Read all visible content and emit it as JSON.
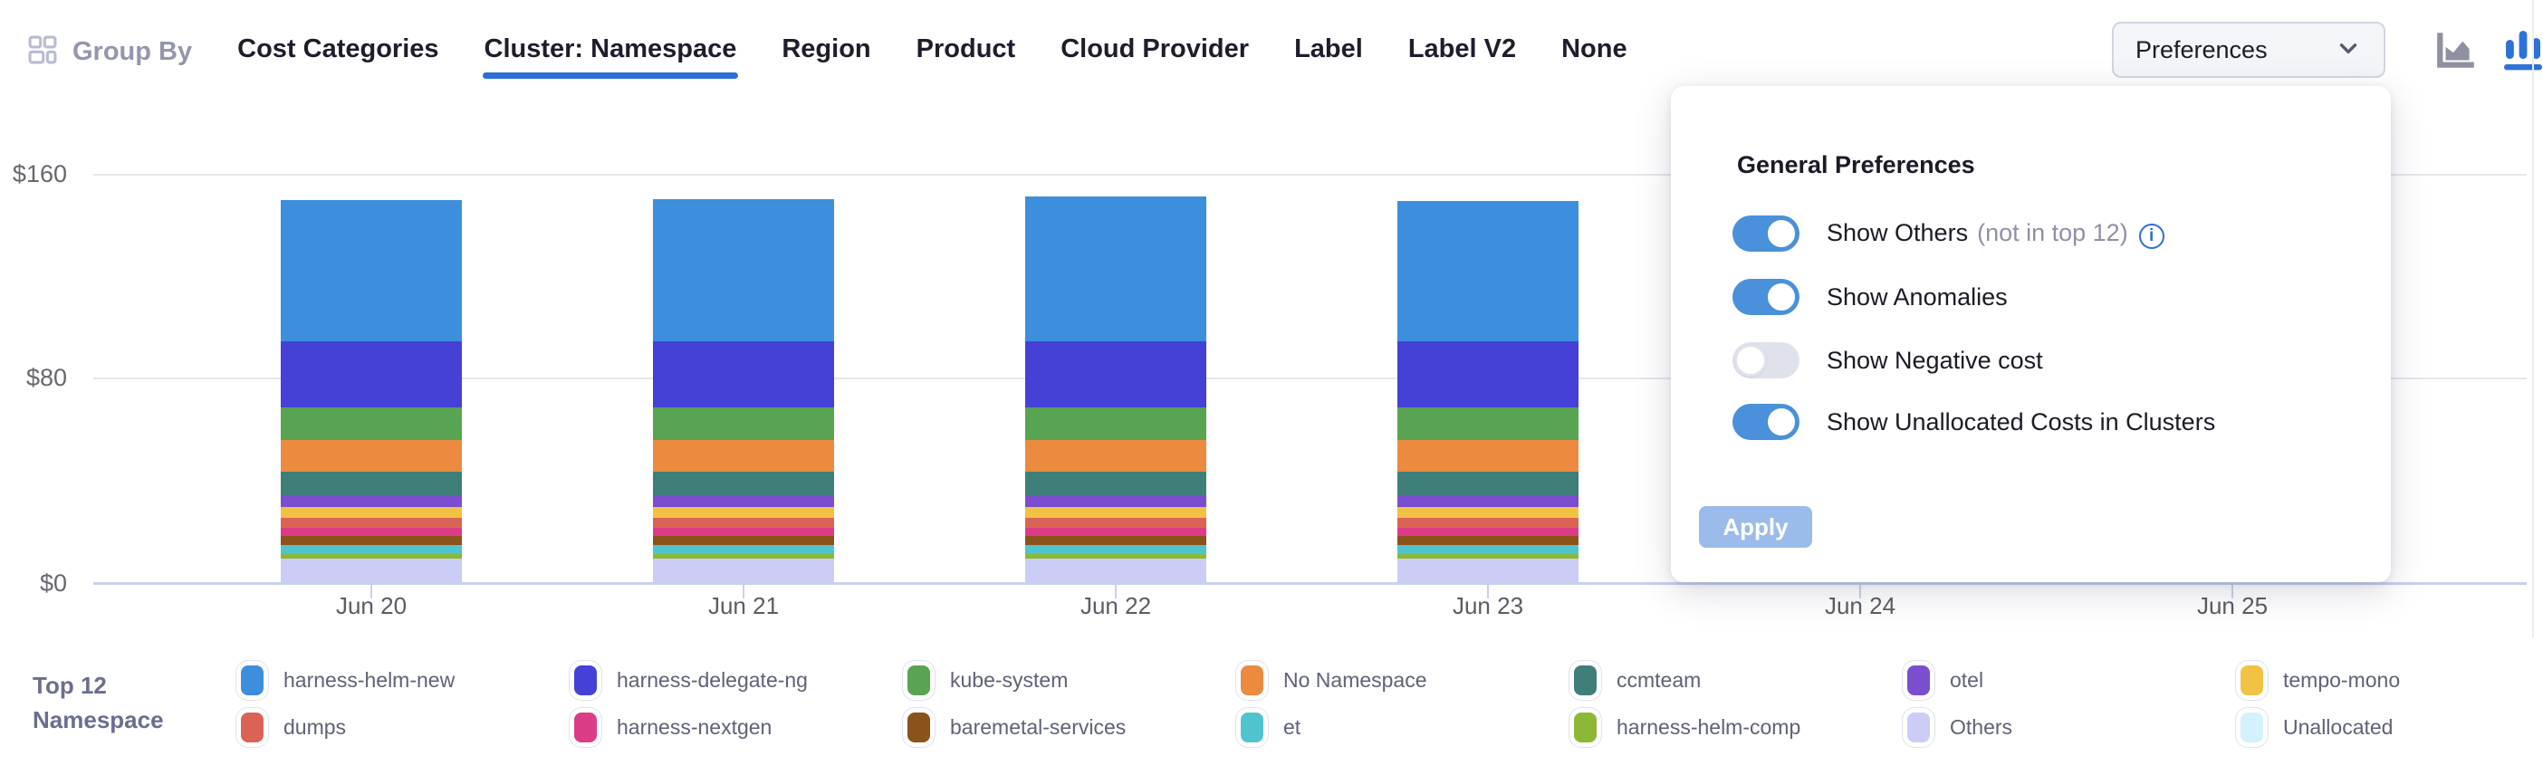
{
  "header": {
    "group_by_label": "Group By",
    "tabs": [
      {
        "label": "Cost Categories",
        "active": false
      },
      {
        "label": "Cluster: Namespace",
        "active": true
      },
      {
        "label": "Region",
        "active": false
      },
      {
        "label": "Product",
        "active": false
      },
      {
        "label": "Cloud Provider",
        "active": false
      },
      {
        "label": "Label",
        "active": false
      },
      {
        "label": "Label V2",
        "active": false
      },
      {
        "label": "None",
        "active": false
      }
    ],
    "preferences_button_label": "Preferences",
    "chart_mode": {
      "icons": [
        "area-chart-icon",
        "bar-chart-icon"
      ],
      "active": "bar-chart-icon"
    }
  },
  "preferences_panel": {
    "title": "General Preferences",
    "toggles": [
      {
        "label": "Show Others",
        "suffix": "(not in top 12)",
        "has_info_icon": true,
        "on": true
      },
      {
        "label": "Show Anomalies",
        "suffix": "",
        "has_info_icon": false,
        "on": true
      },
      {
        "label": "Show Negative cost",
        "suffix": "",
        "has_info_icon": false,
        "on": false
      },
      {
        "label": "Show Unallocated Costs in Clusters",
        "suffix": "",
        "has_info_icon": false,
        "on": true
      }
    ],
    "apply_label": "Apply"
  },
  "legend": {
    "title_line1": "Top 12",
    "title_line2": "Namespace"
  },
  "chart_data": {
    "type": "bar",
    "stacked": true,
    "categories": [
      "Jun 20",
      "Jun 21",
      "Jun 22",
      "Jun 23",
      "Jun 24",
      "Jun 25"
    ],
    "note": "Jun 24 and Jun 25 columns are occluded by the open Preferences panel",
    "y_tick_labels": [
      "$0",
      "$80",
      "$160"
    ],
    "ylim": [
      0,
      160
    ],
    "currency": "$",
    "grid": true,
    "legend_position": "bottom",
    "series": [
      {
        "name": "harness-helm-new",
        "color": "#3d8edd",
        "values": [
          55.5,
          55.8,
          57.0,
          55.2,
          null,
          null
        ]
      },
      {
        "name": "harness-delegate-ng",
        "color": "#4541d6",
        "values": [
          26.0,
          26.0,
          26.0,
          26.0,
          null,
          null
        ]
      },
      {
        "name": "kube-system",
        "color": "#58a452",
        "values": [
          12.5,
          12.5,
          12.5,
          12.5,
          null,
          null
        ]
      },
      {
        "name": "No Namespace",
        "color": "#ec8a3f",
        "values": [
          12.5,
          12.5,
          12.5,
          12.5,
          null,
          null
        ]
      },
      {
        "name": "ccmteam",
        "color": "#3f7e79",
        "values": [
          9.5,
          9.5,
          9.5,
          9.5,
          null,
          null
        ]
      },
      {
        "name": "otel",
        "color": "#7a4ecf",
        "values": [
          4.6,
          4.6,
          4.6,
          4.6,
          null,
          null
        ]
      },
      {
        "name": "tempo-mono",
        "color": "#f2c245",
        "values": [
          4.0,
          4.0,
          4.0,
          4.0,
          null,
          null
        ]
      },
      {
        "name": "dumps",
        "color": "#da6356",
        "values": [
          4.0,
          4.0,
          4.0,
          4.0,
          null,
          null
        ]
      },
      {
        "name": "harness-nextgen",
        "color": "#dc3c85",
        "values": [
          3.3,
          3.3,
          3.3,
          3.3,
          null,
          null
        ]
      },
      {
        "name": "baremetal-services",
        "color": "#8c521c",
        "values": [
          3.5,
          3.5,
          3.5,
          3.5,
          null,
          null
        ]
      },
      {
        "name": "et",
        "color": "#50c4ce",
        "values": [
          3.6,
          3.6,
          3.6,
          3.6,
          null,
          null
        ]
      },
      {
        "name": "harness-helm-comp",
        "color": "#8cb835",
        "values": [
          1.8,
          1.8,
          1.8,
          1.8,
          null,
          null
        ]
      },
      {
        "name": "Others",
        "color": "#cccdf6",
        "values": [
          9.2,
          9.2,
          9.2,
          9.2,
          null,
          null
        ]
      },
      {
        "name": "Unallocated",
        "color": "#d5f1fb",
        "values": [
          0,
          0,
          0,
          0,
          null,
          null
        ]
      }
    ]
  },
  "colors": {
    "accent": "#2b6fd6",
    "toggle_on": "#4a90da",
    "toggle_off": "#dfe2ea",
    "apply_disabled": "#9bbcea",
    "gridline": "#e4e6ea",
    "axis_line": "#c7d0ef"
  }
}
